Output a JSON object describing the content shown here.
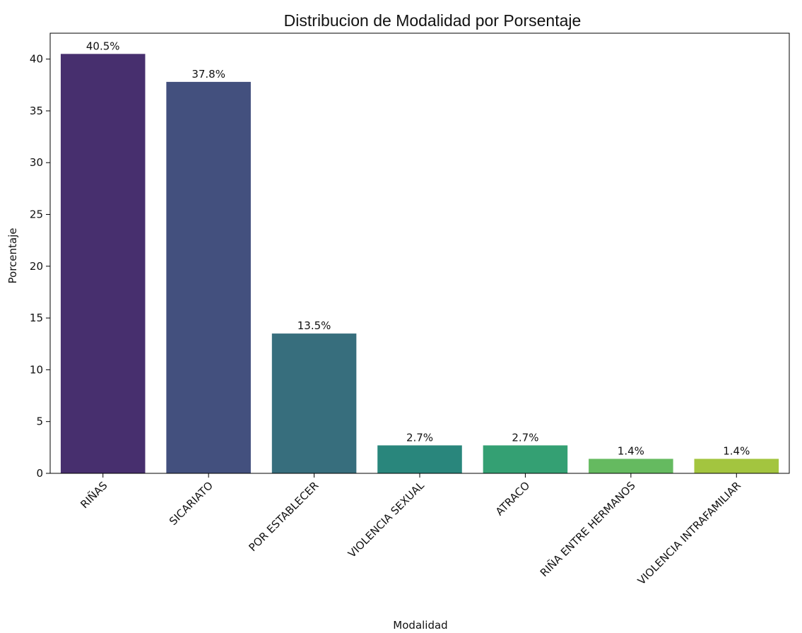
{
  "chart_data": {
    "type": "bar",
    "title": "Distribucion de Modalidad por Porsentaje",
    "xlabel": "Modalidad",
    "ylabel": "Porcentaje",
    "categories": [
      "RIÑAS",
      "SICARIATO",
      "POR ESTABLECER",
      "VIOLENCIA SEXUAL",
      "ATRACO",
      "RIÑA ENTRE HERMANOS",
      "VIOLENCIA INTRAFAMILIAR"
    ],
    "values": [
      40.5,
      37.8,
      13.5,
      2.7,
      2.7,
      1.4,
      1.4
    ],
    "data_labels": [
      "40.5%",
      "37.8%",
      "13.5%",
      "2.7%",
      "2.7%",
      "1.4%",
      "1.4%"
    ],
    "colors": [
      "#472f6e",
      "#43507e",
      "#376e7d",
      "#29867c",
      "#34a073",
      "#65ba60",
      "#a3c53f"
    ],
    "yticks": [
      0,
      5,
      10,
      15,
      20,
      25,
      30,
      35,
      40
    ],
    "ylim": [
      0,
      42.5
    ],
    "grid": false
  }
}
